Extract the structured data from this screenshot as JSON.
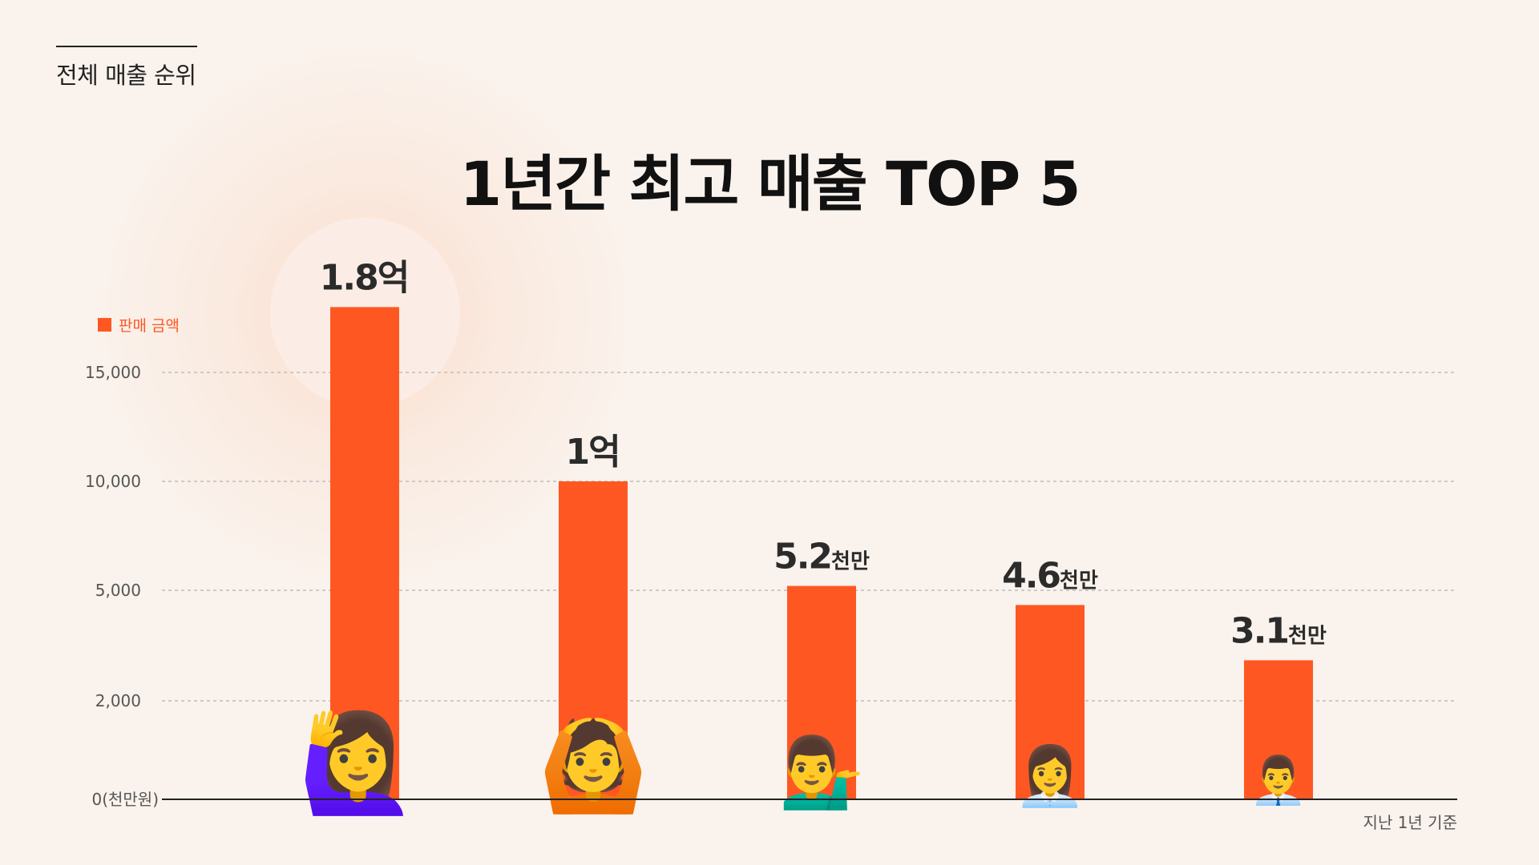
{
  "section_label": "전체 매출 순위",
  "title": "1년간 최고 매출 TOP 5",
  "legend_label": "판매 금액",
  "footnote": "지난 1년 기준",
  "colors": {
    "bar": "#FF5722",
    "grid": "#BDBDBD",
    "axis": "#222222",
    "background": "#FAF2EC"
  },
  "icons": [
    "person-raising-hand-icon",
    "person-gesturing-ok-icon",
    "man-tipping-hand-icon",
    "woman-office-worker-icon",
    "man-office-worker-icon"
  ],
  "chart_data": {
    "type": "bar",
    "categories": [
      "",
      "",
      "",
      "",
      ""
    ],
    "values": [
      18000,
      10000,
      5200,
      4600,
      3100
    ],
    "value_labels": [
      {
        "num": "1.8",
        "unit": "억"
      },
      {
        "num": "1",
        "unit": "억"
      },
      {
        "num": "5.2",
        "unit": "천만"
      },
      {
        "num": "4.6",
        "unit": "천만"
      },
      {
        "num": "3.1",
        "unit": "천만"
      }
    ],
    "y_ticks": [
      0,
      2000,
      5000,
      10000,
      15000
    ],
    "y_tick_labels": [
      "0(천만원)",
      "2,000",
      "5,000",
      "10,000",
      "15,000"
    ],
    "ylabel": "",
    "xlabel": "",
    "grid": true,
    "legend_position": "top-left"
  }
}
